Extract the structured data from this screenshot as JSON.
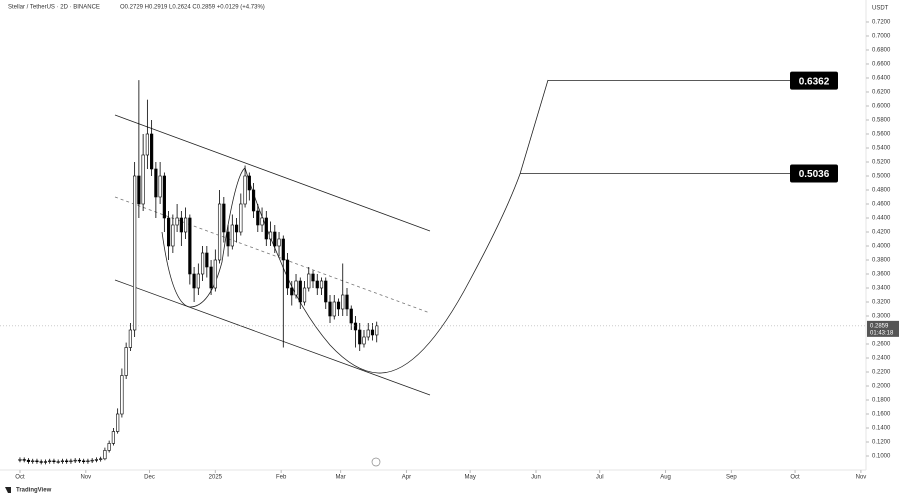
{
  "chart_data": {
    "type": "candlestick",
    "header": "Stellar / TetherUS · 2D · BINANCE",
    "header_ohlc": "O0.2729 H0.2919 L0.2624 C0.2859 +0.0129 (+4.73%)",
    "y_unit": "USDT",
    "countdown": "01:43:18",
    "brand": "TradingView",
    "up_color": "#ffffff",
    "down_color": "#000000",
    "outline_color": "#000000",
    "x": [
      0,
      2,
      4,
      6,
      8,
      10,
      12,
      14,
      16,
      18,
      20,
      22,
      24,
      26,
      28,
      30,
      32,
      34,
      36,
      38,
      40,
      42,
      44,
      46,
      48,
      50,
      52,
      54,
      56,
      58,
      60,
      62,
      64,
      66,
      68,
      70,
      72,
      74,
      76,
      78,
      80,
      82,
      84,
      86,
      88,
      90,
      92,
      94,
      96,
      98,
      100,
      102,
      104,
      106,
      108,
      110,
      112,
      114,
      116,
      118,
      120,
      122,
      124,
      126,
      128,
      130,
      132,
      134,
      136,
      138,
      140,
      142,
      144,
      146,
      148,
      150,
      152,
      154,
      156,
      158,
      160,
      162,
      164,
      166,
      168
    ],
    "open": [
      0.094,
      0.095,
      0.094,
      0.092,
      0.093,
      0.092,
      0.091,
      0.092,
      0.093,
      0.092,
      0.092,
      0.093,
      0.092,
      0.093,
      0.094,
      0.093,
      0.092,
      0.093,
      0.094,
      0.095,
      0.096,
      0.108,
      0.118,
      0.135,
      0.16,
      0.215,
      0.255,
      0.28,
      0.5,
      0.46,
      0.53,
      0.56,
      0.51,
      0.47,
      0.5,
      0.44,
      0.4,
      0.43,
      0.44,
      0.42,
      0.44,
      0.36,
      0.34,
      0.36,
      0.39,
      0.37,
      0.34,
      0.38,
      0.46,
      0.42,
      0.4,
      0.43,
      0.42,
      0.46,
      0.5,
      0.48,
      0.45,
      0.43,
      0.44,
      0.41,
      0.42,
      0.4,
      0.41,
      0.38,
      0.34,
      0.33,
      0.35,
      0.32,
      0.34,
      0.36,
      0.35,
      0.34,
      0.35,
      0.32,
      0.3,
      0.32,
      0.31,
      0.33,
      0.31,
      0.29,
      0.28,
      0.26,
      0.27,
      0.28,
      0.2729
    ],
    "high": [
      0.098,
      0.098,
      0.097,
      0.096,
      0.096,
      0.095,
      0.095,
      0.096,
      0.096,
      0.095,
      0.096,
      0.096,
      0.096,
      0.097,
      0.097,
      0.096,
      0.096,
      0.097,
      0.098,
      0.099,
      0.112,
      0.122,
      0.14,
      0.168,
      0.225,
      0.262,
      0.29,
      0.52,
      0.637,
      0.56,
      0.609,
      0.58,
      0.52,
      0.52,
      0.505,
      0.45,
      0.445,
      0.46,
      0.45,
      0.455,
      0.445,
      0.37,
      0.375,
      0.4,
      0.4,
      0.38,
      0.395,
      0.48,
      0.47,
      0.43,
      0.445,
      0.44,
      0.475,
      0.515,
      0.505,
      0.49,
      0.46,
      0.455,
      0.45,
      0.435,
      0.43,
      0.42,
      0.415,
      0.39,
      0.35,
      0.36,
      0.355,
      0.35,
      0.37,
      0.365,
      0.36,
      0.355,
      0.355,
      0.33,
      0.33,
      0.325,
      0.375,
      0.34,
      0.315,
      0.3,
      0.29,
      0.28,
      0.29,
      0.29,
      0.2919
    ],
    "low": [
      0.091,
      0.091,
      0.089,
      0.089,
      0.089,
      0.088,
      0.088,
      0.089,
      0.089,
      0.089,
      0.089,
      0.089,
      0.089,
      0.09,
      0.09,
      0.089,
      0.089,
      0.09,
      0.091,
      0.092,
      0.094,
      0.105,
      0.115,
      0.132,
      0.155,
      0.21,
      0.25,
      0.27,
      0.44,
      0.45,
      0.51,
      0.5,
      0.44,
      0.46,
      0.42,
      0.38,
      0.39,
      0.42,
      0.4,
      0.41,
      0.345,
      0.32,
      0.33,
      0.35,
      0.355,
      0.33,
      0.335,
      0.375,
      0.405,
      0.385,
      0.395,
      0.405,
      0.415,
      0.455,
      0.465,
      0.44,
      0.42,
      0.42,
      0.4,
      0.4,
      0.39,
      0.385,
      0.255,
      0.33,
      0.315,
      0.325,
      0.31,
      0.315,
      0.335,
      0.34,
      0.33,
      0.33,
      0.31,
      0.29,
      0.295,
      0.3,
      0.3,
      0.3,
      0.28,
      0.255,
      0.25,
      0.255,
      0.265,
      0.265,
      0.2624
    ],
    "close": [
      0.095,
      0.094,
      0.092,
      0.093,
      0.092,
      0.091,
      0.092,
      0.093,
      0.092,
      0.092,
      0.093,
      0.092,
      0.093,
      0.094,
      0.093,
      0.092,
      0.093,
      0.094,
      0.095,
      0.096,
      0.108,
      0.118,
      0.135,
      0.16,
      0.215,
      0.255,
      0.28,
      0.5,
      0.46,
      0.53,
      0.56,
      0.51,
      0.47,
      0.5,
      0.44,
      0.4,
      0.43,
      0.44,
      0.42,
      0.44,
      0.36,
      0.34,
      0.36,
      0.39,
      0.37,
      0.34,
      0.38,
      0.46,
      0.42,
      0.4,
      0.43,
      0.42,
      0.46,
      0.5,
      0.48,
      0.45,
      0.43,
      0.44,
      0.41,
      0.42,
      0.4,
      0.41,
      0.38,
      0.34,
      0.33,
      0.35,
      0.32,
      0.34,
      0.36,
      0.35,
      0.34,
      0.35,
      0.32,
      0.3,
      0.32,
      0.31,
      0.33,
      0.31,
      0.29,
      0.28,
      0.26,
      0.27,
      0.28,
      0.2729,
      0.2859
    ],
    "targets": [
      0.6362,
      0.5036
    ],
    "xlim": [
      -9.4,
      398.4
    ],
    "ylim": [
      0.08,
      0.7514
    ],
    "xticks": [
      {
        "value": 0,
        "label": "Oct"
      },
      {
        "value": 31,
        "label": "Nov"
      },
      {
        "value": 61,
        "label": "Dec"
      },
      {
        "value": 92,
        "label": "2025"
      },
      {
        "value": 123,
        "label": "Feb"
      },
      {
        "value": 151,
        "label": "Mar"
      },
      {
        "value": 182,
        "label": "Apr"
      },
      {
        "value": 212,
        "label": "May"
      },
      {
        "value": 243,
        "label": "Jun"
      },
      {
        "value": 273,
        "label": "Jul"
      },
      {
        "value": 304,
        "label": "Aug"
      },
      {
        "value": 335,
        "label": "Sep"
      },
      {
        "value": 365,
        "label": "Oct"
      },
      {
        "value": 396,
        "label": "Nov"
      }
    ],
    "yticks": [
      {
        "value": 0.1,
        "label": "0.1000"
      },
      {
        "value": 0.12,
        "label": "0.1200"
      },
      {
        "value": 0.14,
        "label": "0.1400"
      },
      {
        "value": 0.16,
        "label": "0.1600"
      },
      {
        "value": 0.18,
        "label": "0.1800"
      },
      {
        "value": 0.2,
        "label": "0.2000"
      },
      {
        "value": 0.22,
        "label": "0.2200"
      },
      {
        "value": 0.24,
        "label": "0.2400"
      },
      {
        "value": 0.26,
        "label": "0.2600"
      },
      {
        "value": 0.3,
        "label": "0.3000"
      },
      {
        "value": 0.32,
        "label": "0.3200"
      },
      {
        "value": 0.34,
        "label": "0.3400"
      },
      {
        "value": 0.36,
        "label": "0.3600"
      },
      {
        "value": 0.38,
        "label": "0.3800"
      },
      {
        "value": 0.4,
        "label": "0.4000"
      },
      {
        "value": 0.42,
        "label": "0.4200"
      },
      {
        "value": 0.44,
        "label": "0.4400"
      },
      {
        "value": 0.46,
        "label": "0.4600"
      },
      {
        "value": 0.48,
        "label": "0.4800"
      },
      {
        "value": 0.5,
        "label": "0.5000"
      },
      {
        "value": 0.52,
        "label": "0.5200"
      },
      {
        "value": 0.54,
        "label": "0.5400"
      },
      {
        "value": 0.56,
        "label": "0.5600"
      },
      {
        "value": 0.58,
        "label": "0.5800"
      },
      {
        "value": 0.6,
        "label": "0.6000"
      },
      {
        "value": 0.62,
        "label": "0.6200"
      },
      {
        "value": 0.64,
        "label": "0.6400"
      },
      {
        "value": 0.66,
        "label": "0.6600"
      },
      {
        "value": 0.68,
        "label": "0.6800"
      },
      {
        "value": 0.7,
        "label": "0.7000"
      },
      {
        "value": 0.72,
        "label": "0.7200"
      }
    ],
    "grid": false
  }
}
